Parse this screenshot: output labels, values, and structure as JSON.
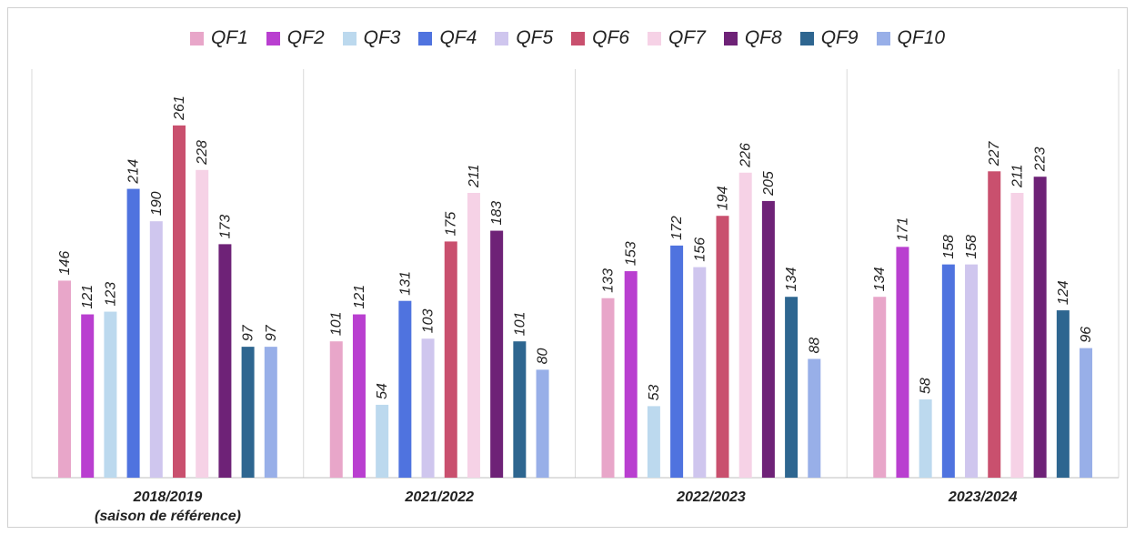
{
  "chart_data": {
    "type": "bar",
    "categories": [
      "2018/2019\n(saison de référence)",
      "2021/2022",
      "2022/2023",
      "2023/2024"
    ],
    "series": [
      {
        "name": "QF1",
        "color": "#e8a6c9",
        "values": [
          146,
          101,
          133,
          134
        ]
      },
      {
        "name": "QF2",
        "color": "#b93fd0",
        "values": [
          121,
          121,
          153,
          171
        ]
      },
      {
        "name": "QF3",
        "color": "#bcd9ee",
        "values": [
          123,
          54,
          53,
          58
        ]
      },
      {
        "name": "QF4",
        "color": "#4f73df",
        "values": [
          214,
          131,
          172,
          158
        ]
      },
      {
        "name": "QF5",
        "color": "#cfc6ee",
        "values": [
          190,
          103,
          156,
          158
        ]
      },
      {
        "name": "QF6",
        "color": "#c9506e",
        "values": [
          261,
          175,
          194,
          227
        ]
      },
      {
        "name": "QF7",
        "color": "#f6d2e6",
        "values": [
          228,
          211,
          226,
          211
        ]
      },
      {
        "name": "QF8",
        "color": "#6e2277",
        "values": [
          173,
          183,
          205,
          223
        ]
      },
      {
        "name": "QF9",
        "color": "#2e6690",
        "values": [
          97,
          101,
          134,
          124
        ]
      },
      {
        "name": "QF10",
        "color": "#98afe8",
        "values": [
          97,
          80,
          88,
          96
        ]
      }
    ],
    "ylim": [
      0,
      300
    ],
    "legend": "top"
  }
}
